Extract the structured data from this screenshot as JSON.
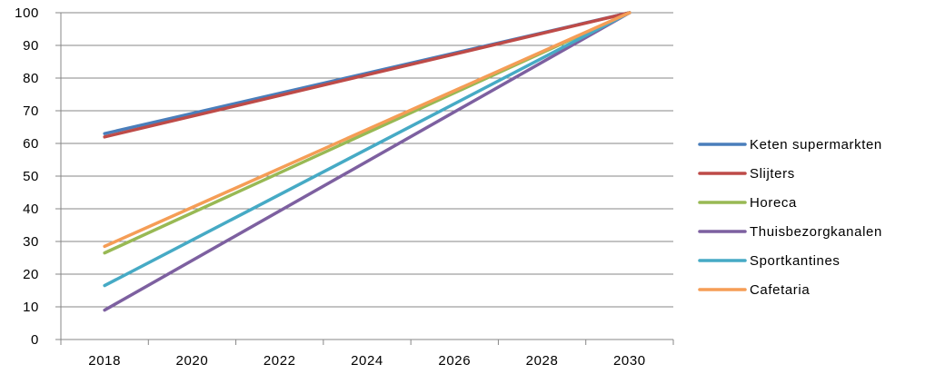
{
  "chart_data": {
    "type": "line",
    "title": "",
    "xlabel": "",
    "ylabel": "",
    "x": [
      2018,
      2030
    ],
    "x_ticks": [
      "2018",
      "2020",
      "2022",
      "2024",
      "2026",
      "2028",
      "2030"
    ],
    "y_ticks": [
      "0",
      "10",
      "20",
      "30",
      "40",
      "50",
      "60",
      "70",
      "80",
      "90",
      "100"
    ],
    "ylim": [
      0,
      100
    ],
    "grid": "horizontal",
    "legend_position": "right",
    "series": [
      {
        "name": "Keten supermarkten",
        "color": "#4A7EBB",
        "values": [
          63,
          100
        ]
      },
      {
        "name": "Slijters",
        "color": "#BE4B48",
        "values": [
          62,
          100
        ]
      },
      {
        "name": "Horeca",
        "color": "#98B954",
        "values": [
          26.5,
          100
        ]
      },
      {
        "name": "Thuisbezorgkanalen",
        "color": "#7D60A0",
        "values": [
          9,
          100
        ]
      },
      {
        "name": "Sportkantines",
        "color": "#46AAC5",
        "values": [
          16.5,
          100
        ]
      },
      {
        "name": "Cafetaria",
        "color": "#F59D56",
        "values": [
          28.5,
          100
        ]
      }
    ]
  }
}
